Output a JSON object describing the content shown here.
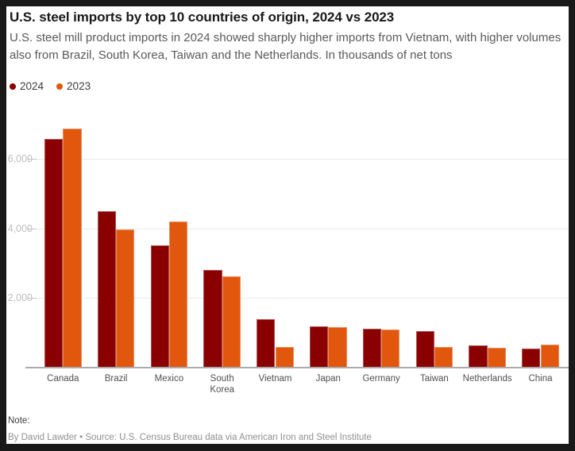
{
  "page": {
    "background_color": "#191919",
    "card_color": "#ffffff"
  },
  "header": {
    "title": "U.S. steel imports by top 10 countries of origin, 2024 vs 2023",
    "subtitle": "U.S. steel mill product imports in 2024 showed sharply higher imports from Vietnam, with higher volumes also from Brazil, South Korea, Taiwan and the Netherlands. In thousands of net tons"
  },
  "legend": {
    "items": [
      {
        "label": "2024",
        "color": "#8a0000"
      },
      {
        "label": "2023",
        "color": "#e2570e"
      }
    ]
  },
  "chart_data": {
    "type": "bar",
    "title": "U.S. steel imports by top 10 countries of origin, 2024 vs 2023",
    "subtitle": "U.S. steel mill product imports in 2024 showed sharply higher imports from Vietnam, with higher volumes also from Brazil, South Korea, Taiwan and the Netherlands.",
    "units": "thousands of net tons",
    "categories": [
      "Canada",
      "Brazil",
      "Mexico",
      "South Korea",
      "Vietnam",
      "Japan",
      "Germany",
      "Taiwan",
      "Netherlands",
      "China"
    ],
    "xtick_labels": [
      "Canada",
      "Brazil",
      "Mexico",
      "South\nKorea",
      "Vietnam",
      "Japan",
      "Germany",
      "Taiwan",
      "Netherlands",
      "China"
    ],
    "series": [
      {
        "name": "2024",
        "color": "#8a0000",
        "values": [
          6558,
          4500,
          3520,
          2803,
          1387,
          1186,
          1118,
          1056,
          641,
          554
        ]
      },
      {
        "name": "2023",
        "color": "#e2570e",
        "values": [
          6866,
          3963,
          4188,
          2620,
          585,
          1169,
          1086,
          594,
          560,
          653
        ]
      }
    ],
    "xlabel": "",
    "ylabel": "",
    "ylim": [
      0,
      7000
    ],
    "yticks": [
      2000,
      4000,
      6000
    ],
    "ytick_labels": [
      "2,000",
      "4,000",
      "6,000"
    ],
    "grid": true,
    "legend_position": "top-left"
  },
  "footer": {
    "note_label": "Note:",
    "byline": "By David Lawder • Source: U.S. Census Bureau data via American Iron and Steel Institute"
  }
}
